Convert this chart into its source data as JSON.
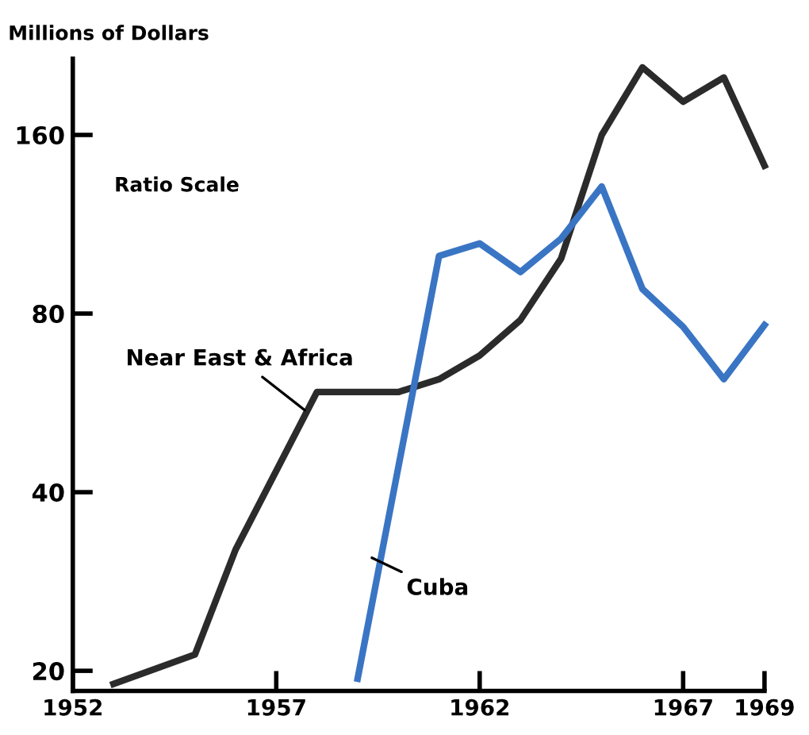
{
  "chart_data": {
    "type": "line",
    "ylabel": "Millions of Dollars",
    "annotations": [
      "Ratio Scale"
    ],
    "log": "y",
    "grid": false,
    "legend": false,
    "marker": "none",
    "line_style": "solid",
    "xlim": [
      1952,
      1969
    ],
    "ylim": [
      18.5,
      215
    ],
    "xticks": [
      1952,
      1957,
      1962,
      1967,
      1969
    ],
    "yticks": [
      20,
      40,
      80,
      160
    ],
    "series": [
      {
        "name": "Near East & Africa",
        "color": "#2b2b2b",
        "x": [
          1953,
          1955,
          1956,
          1958,
          1960,
          1961,
          1962,
          1963,
          1964,
          1965,
          1966,
          1967,
          1968,
          1969
        ],
        "values": [
          19,
          21.3,
          32,
          59,
          59,
          62,
          68,
          78,
          99,
          160,
          208,
          182,
          200,
          142
        ]
      },
      {
        "name": "Cuba",
        "color": "#3a75c4",
        "x": [
          1959,
          1961,
          1962,
          1963,
          1964,
          1965,
          1966,
          1967,
          1968,
          1969
        ],
        "values": [
          19.4,
          100,
          105,
          94,
          107,
          131,
          88,
          76,
          62,
          76.5
        ]
      }
    ]
  }
}
